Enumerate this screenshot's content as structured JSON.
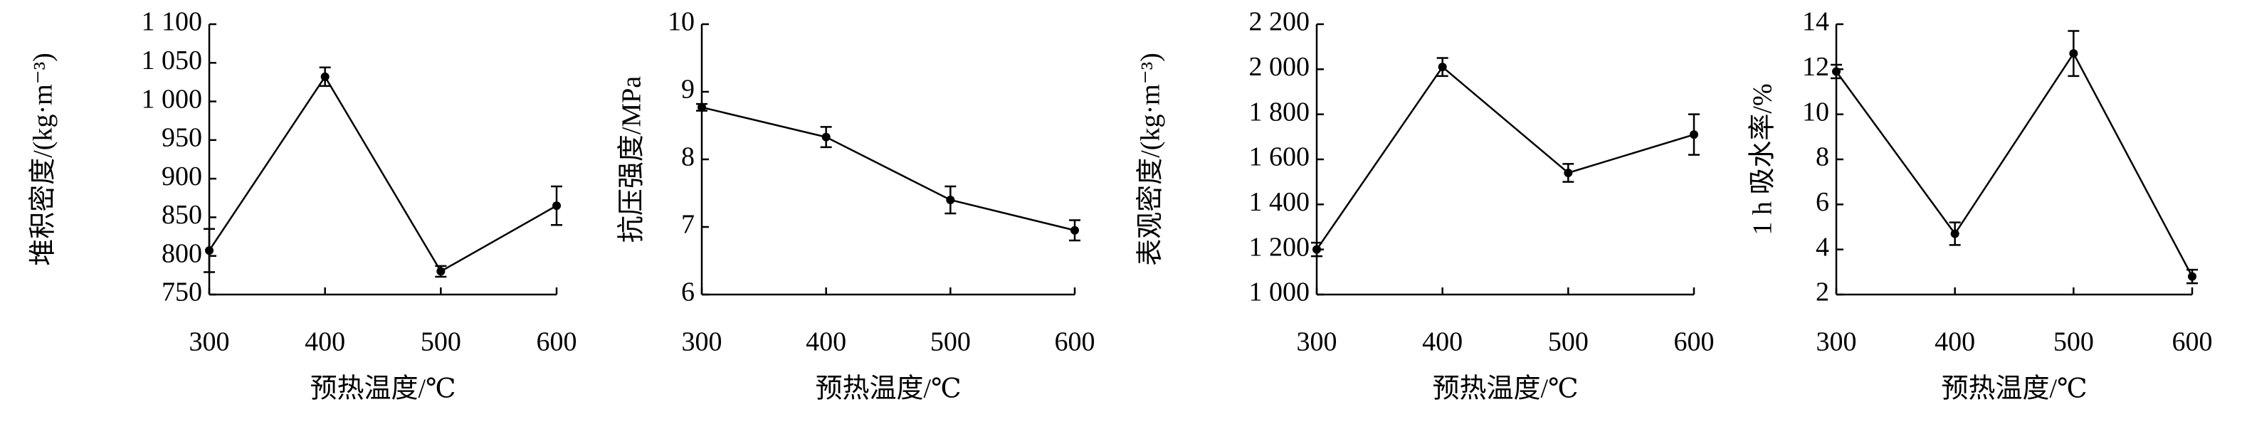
{
  "chart_data": [
    {
      "type": "line",
      "x": [
        300,
        400,
        500,
        600
      ],
      "values": [
        807,
        1032,
        780,
        865
      ],
      "errors": [
        28,
        12,
        7,
        25
      ],
      "color": "#000000",
      "xlim": [
        300,
        600
      ],
      "ylim": [
        750,
        1100
      ],
      "xticks": [
        300,
        400,
        500,
        600
      ],
      "yticks": [
        750,
        800,
        850,
        900,
        950,
        {
          "value": 1000,
          "label": "1 000"
        },
        {
          "value": 1050,
          "label": "1 050"
        },
        {
          "value": 1100,
          "label": "1 100"
        }
      ],
      "xlabel": "预热温度/℃",
      "ylabel": "堆积密度/(kg·m⁻³)"
    },
    {
      "type": "line",
      "x": [
        300,
        400,
        500,
        600
      ],
      "values": [
        8.77,
        8.33,
        7.4,
        6.95
      ],
      "errors": [
        0.05,
        0.15,
        0.2,
        0.15
      ],
      "color": "#000000",
      "xlim": [
        300,
        600
      ],
      "ylim": [
        6,
        10
      ],
      "xticks": [
        300,
        400,
        500,
        600
      ],
      "yticks": [
        6,
        7,
        8,
        9,
        10
      ],
      "xlabel": "预热温度/℃",
      "ylabel": "抗压强度/MPa"
    },
    {
      "type": "line",
      "x": [
        300,
        400,
        500,
        600
      ],
      "values": [
        1200,
        2010,
        1540,
        1710
      ],
      "errors": [
        30,
        40,
        40,
        90
      ],
      "color": "#000000",
      "xlim": [
        300,
        600
      ],
      "ylim": [
        1000,
        2200
      ],
      "xticks": [
        300,
        400,
        500,
        600
      ],
      "yticks": [
        {
          "value": 1000,
          "label": "1 000"
        },
        {
          "value": 1200,
          "label": "1 200"
        },
        {
          "value": 1400,
          "label": "1 400"
        },
        {
          "value": 1600,
          "label": "1 600"
        },
        {
          "value": 1800,
          "label": "1 800"
        },
        {
          "value": 2000,
          "label": "2 000"
        },
        {
          "value": 2200,
          "label": "2 200"
        }
      ],
      "xlabel": "预热温度/℃",
      "ylabel": "表观密度/(kg·m⁻³)"
    },
    {
      "type": "line",
      "x": [
        300,
        400,
        500,
        600
      ],
      "values": [
        11.9,
        4.7,
        12.7,
        2.8
      ],
      "errors": [
        0.3,
        0.5,
        1.0,
        0.3
      ],
      "color": "#000000",
      "xlim": [
        300,
        600
      ],
      "ylim": [
        2,
        14
      ],
      "xticks": [
        300,
        400,
        500,
        600
      ],
      "yticks": [
        2,
        4,
        6,
        8,
        10,
        12,
        14
      ],
      "xlabel": "预热温度/℃",
      "ylabel": "1 h 吸水率/%"
    }
  ]
}
